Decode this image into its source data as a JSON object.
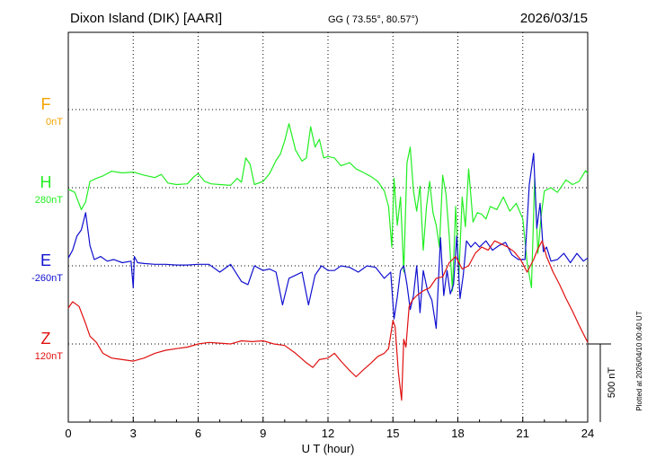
{
  "header": {
    "station": "Dixon Island (DIK)  [AARI]",
    "coords": "GG ( 73.55°,  80.57°)",
    "date": "2026/03/15"
  },
  "footer": {
    "plotted": "Plotted at 2026/04/10 00:40 UT"
  },
  "chart_data": {
    "type": "line",
    "xlabel": "U T (hour)",
    "xlim": [
      0,
      24
    ],
    "xticks": [
      "0",
      "3",
      "6",
      "9",
      "12",
      "15",
      "18",
      "21",
      "24"
    ],
    "scale_bar_label": "500 nT",
    "colors": {
      "F": "#f5a300",
      "H": "#22ee22",
      "E": "#1010d0",
      "Z": "#e01010"
    },
    "series": [
      {
        "name": "F",
        "baseline_label": "0nT",
        "color": "#f5a300",
        "x": [],
        "y": []
      },
      {
        "name": "H",
        "baseline_label": "280nT",
        "color": "#22ee22",
        "x": [
          0,
          0.3,
          0.6,
          0.8,
          1.0,
          1.3,
          1.6,
          2.0,
          2.5,
          3.0,
          3.5,
          4.0,
          4.3,
          4.6,
          5.0,
          5.5,
          5.8,
          6.0,
          6.3,
          6.6,
          7.0,
          7.5,
          7.8,
          8.0,
          8.2,
          8.4,
          8.6,
          9.0,
          9.3,
          9.6,
          9.8,
          10.0,
          10.2,
          10.5,
          10.8,
          11.0,
          11.2,
          11.4,
          11.6,
          11.8,
          12.0,
          12.3,
          12.6,
          13.0,
          13.3,
          13.6,
          14.0,
          14.3,
          14.6,
          14.8,
          14.95,
          15.05,
          15.2,
          15.35,
          15.5,
          15.65,
          15.8,
          15.95,
          16.1,
          16.25,
          16.4,
          16.55,
          16.7,
          16.85,
          17.0,
          17.15,
          17.3,
          17.45,
          17.6,
          17.75,
          17.9,
          18.05,
          18.2,
          18.35,
          18.5,
          18.7,
          18.9,
          19.1,
          19.3,
          19.5,
          19.8,
          20.1,
          20.4,
          20.7,
          21.0,
          21.2,
          21.4,
          21.55,
          21.7,
          21.85,
          22.0,
          22.3,
          22.6,
          23.0,
          23.3,
          23.6,
          23.9,
          24.0
        ],
        "y": [
          -10,
          -30,
          -140,
          -90,
          40,
          60,
          75,
          105,
          95,
          100,
          80,
          65,
          85,
          30,
          20,
          25,
          70,
          90,
          40,
          25,
          20,
          15,
          60,
          35,
          190,
          150,
          20,
          40,
          90,
          175,
          215,
          300,
          410,
          240,
          170,
          190,
          390,
          260,
          310,
          190,
          200,
          190,
          140,
          160,
          120,
          100,
          70,
          40,
          -20,
          -120,
          -380,
          60,
          -240,
          -60,
          -540,
          160,
          260,
          -20,
          -150,
          10,
          -400,
          -120,
          40,
          -160,
          -240,
          -380,
          80,
          -40,
          -310,
          -660,
          -120,
          -560,
          -60,
          -250,
          120,
          -220,
          -160,
          -170,
          -200,
          -120,
          -140,
          -60,
          -150,
          -100,
          -200,
          -480,
          -640,
          60,
          -420,
          -180,
          -20,
          0,
          -30,
          50,
          20,
          40,
          110,
          90
        ]
      },
      {
        "name": "E",
        "baseline_label": "-260nT",
        "color": "#1010d0",
        "x": [
          0,
          0.2,
          0.4,
          0.6,
          0.8,
          1.0,
          1.2,
          1.5,
          1.8,
          2.1,
          2.5,
          2.9,
          3.0,
          3.05,
          3.2,
          3.5,
          4.0,
          4.5,
          5.0,
          5.5,
          6.0,
          6.5,
          7.0,
          7.5,
          8.0,
          8.3,
          8.6,
          9.0,
          9.3,
          9.6,
          9.9,
          10.2,
          10.5,
          10.8,
          11.1,
          11.4,
          11.7,
          12.0,
          12.3,
          12.6,
          13.0,
          13.4,
          13.8,
          14.2,
          14.6,
          14.9,
          15.05,
          15.2,
          15.35,
          15.5,
          15.65,
          15.8,
          15.95,
          16.1,
          16.25,
          16.4,
          16.6,
          16.8,
          17.0,
          17.2,
          17.35,
          17.5,
          17.65,
          17.8,
          17.95,
          18.1,
          18.25,
          18.4,
          18.6,
          18.8,
          19.0,
          19.3,
          19.6,
          19.9,
          20.2,
          20.5,
          20.8,
          21.1,
          21.3,
          21.5,
          21.65,
          21.8,
          21.95,
          22.1,
          22.3,
          22.6,
          22.9,
          23.2,
          23.5,
          23.8,
          24.0
        ],
        "y": [
          50,
          100,
          190,
          230,
          340,
          130,
          40,
          60,
          30,
          40,
          20,
          30,
          -140,
          60,
          20,
          15,
          10,
          10,
          5,
          5,
          10,
          10,
          -40,
          10,
          -100,
          -120,
          0,
          -30,
          -20,
          -40,
          -250,
          -80,
          -60,
          -40,
          -250,
          -60,
          0,
          -30,
          -30,
          0,
          -10,
          -40,
          0,
          -10,
          -80,
          -40,
          -340,
          -200,
          -30,
          0,
          -120,
          -280,
          -190,
          0,
          -300,
          -30,
          -160,
          -220,
          -400,
          180,
          -190,
          -30,
          -180,
          -120,
          190,
          -210,
          -60,
          160,
          120,
          150,
          120,
          160,
          100,
          130,
          150,
          70,
          40,
          40,
          520,
          720,
          240,
          400,
          90,
          120,
          30,
          40,
          80,
          20,
          80,
          30,
          50
        ]
      },
      {
        "name": "Z",
        "baseline_label": "120nT",
        "color": "#e01010",
        "x": [
          0,
          0.2,
          0.5,
          0.8,
          1.0,
          1.3,
          1.6,
          2.0,
          2.5,
          3.0,
          3.5,
          4.0,
          4.5,
          5.0,
          5.5,
          6.0,
          6.5,
          7.0,
          7.5,
          8.0,
          8.5,
          9.0,
          9.5,
          10.0,
          10.5,
          11.0,
          11.3,
          11.6,
          12.0,
          12.3,
          12.6,
          13.0,
          13.3,
          13.6,
          14.0,
          14.3,
          14.6,
          14.8,
          15.0,
          15.1,
          15.25,
          15.4,
          15.5,
          15.6,
          15.75,
          15.9,
          16.1,
          16.4,
          16.7,
          17.0,
          17.3,
          17.6,
          17.9,
          18.2,
          18.5,
          18.8,
          19.1,
          19.4,
          19.7,
          20.0,
          20.3,
          20.6,
          20.9,
          21.2,
          21.5,
          21.7,
          21.9,
          22.1,
          22.4,
          22.7,
          23.0,
          23.3,
          23.6,
          24.0
        ],
        "y": [
          230,
          270,
          240,
          130,
          50,
          10,
          -60,
          -90,
          -100,
          -110,
          -90,
          -60,
          -40,
          -30,
          -20,
          0,
          10,
          5,
          0,
          20,
          15,
          20,
          0,
          -10,
          -60,
          -120,
          -150,
          -100,
          -90,
          -60,
          -110,
          -170,
          -210,
          -170,
          -120,
          -80,
          -60,
          -30,
          150,
          110,
          -180,
          -360,
          30,
          -20,
          240,
          280,
          310,
          340,
          360,
          420,
          430,
          520,
          560,
          480,
          500,
          580,
          620,
          600,
          660,
          640,
          620,
          590,
          540,
          460,
          540,
          610,
          660,
          560,
          460,
          380,
          290,
          210,
          120,
          10
        ]
      }
    ]
  }
}
